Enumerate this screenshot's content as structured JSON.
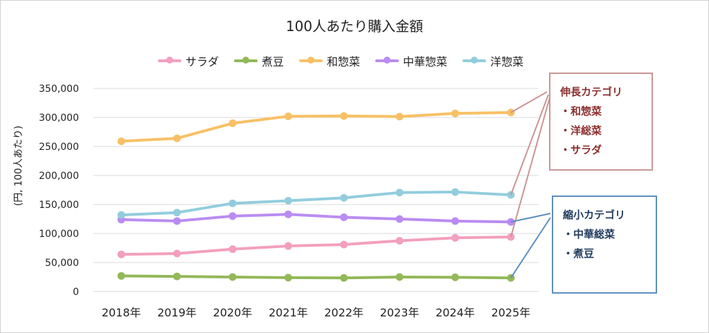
{
  "chart_data": {
    "type": "line",
    "title": "100人あたり購入金額",
    "ylabel": "(円, 100人あたり)",
    "xlabel": "",
    "categories": [
      "2018年",
      "2019年",
      "2020年",
      "2021年",
      "2022年",
      "2023年",
      "2024年",
      "2025年"
    ],
    "ylim": [
      0,
      350000
    ],
    "yticks": [
      0,
      50000,
      100000,
      150000,
      200000,
      250000,
      300000,
      350000
    ],
    "ytick_labels": [
      "0",
      "50,000",
      "100,000",
      "150,000",
      "200,000",
      "250,000",
      "300,000",
      "350,000"
    ],
    "grid": true,
    "legend_position": "top",
    "series": [
      {
        "name": "サラダ",
        "color": "#f39fbd",
        "values": [
          64000,
          65500,
          73000,
          78500,
          81000,
          87500,
          92500,
          94000
        ]
      },
      {
        "name": "煮豆",
        "color": "#93b858",
        "values": [
          27000,
          26000,
          25000,
          24000,
          23500,
          25000,
          24500,
          23500
        ]
      },
      {
        "name": "和惣菜",
        "color": "#f8c065",
        "values": [
          259000,
          264000,
          290000,
          302000,
          302500,
          301500,
          307000,
          308500
        ]
      },
      {
        "name": "中華惣菜",
        "color": "#b98cf1",
        "values": [
          124000,
          121500,
          130000,
          133000,
          128000,
          125000,
          121500,
          120000
        ]
      },
      {
        "name": "洋惣菜",
        "color": "#92cddd",
        "values": [
          132000,
          136000,
          152000,
          156500,
          161500,
          170500,
          171500,
          166500
        ]
      }
    ]
  },
  "callouts": {
    "growth": {
      "title": "伸長カテゴリ",
      "items": [
        "・和惣菜",
        "・洋総菜",
        "・サラダ"
      ],
      "color": "#8b2e2e"
    },
    "shrink": {
      "title": "縮小カテゴリ",
      "items": [
        "・中華総菜",
        "・煮豆"
      ],
      "color": "#1f3b5c"
    }
  }
}
